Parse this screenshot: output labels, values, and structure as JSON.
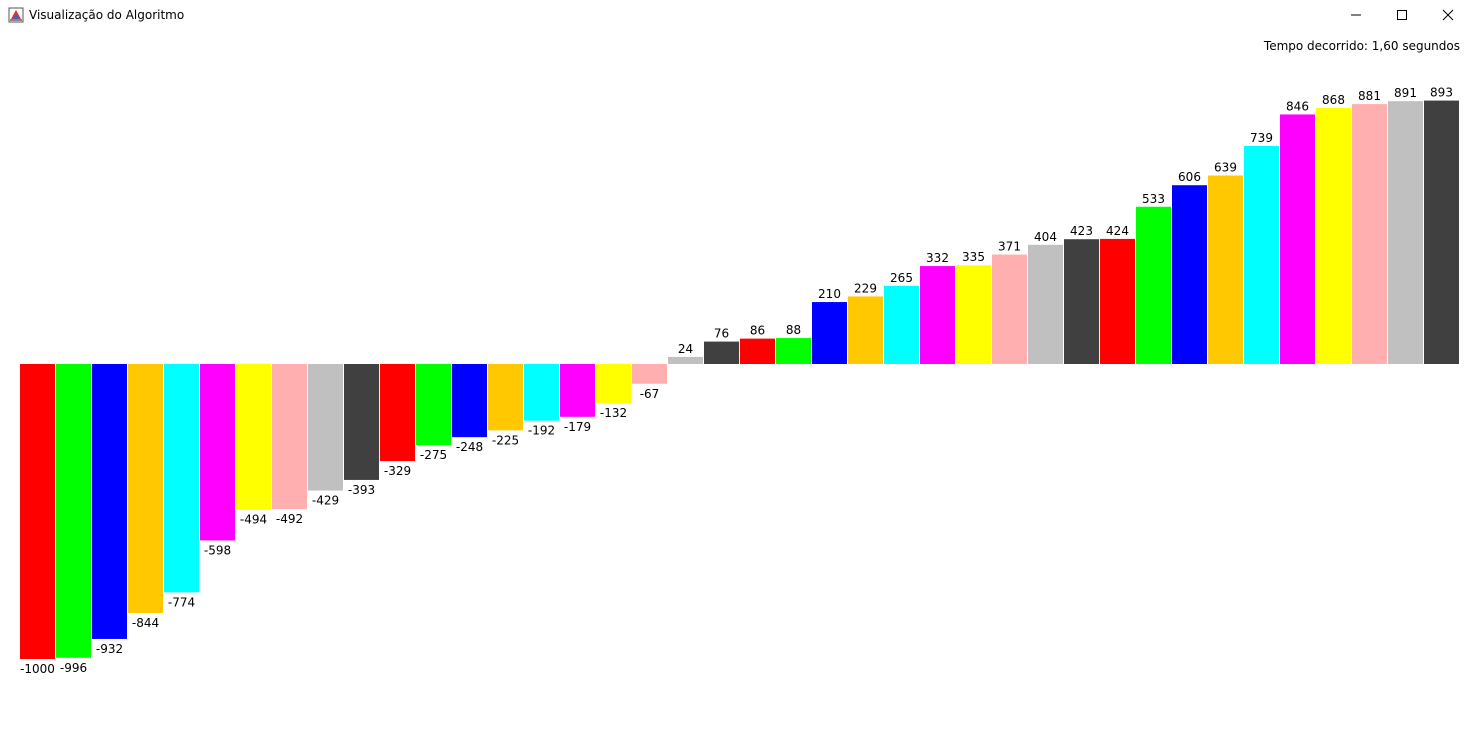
{
  "window": {
    "title": "Visualização do Algoritmo",
    "controls": {
      "minimize": "minimize-icon",
      "maximize": "maximize-icon",
      "close": "close-icon"
    }
  },
  "status": {
    "elapsed": "Tempo decorrido: 1,60 segundos"
  },
  "palette": [
    "#ff0000",
    "#00ff00",
    "#0000ff",
    "#ffc800",
    "#00ffff",
    "#ff00ff",
    "#ffff00",
    "#ffafaf",
    "#c0c0c0",
    "#404040"
  ],
  "chart_data": {
    "type": "bar",
    "title": "",
    "xlabel": "",
    "ylabel": "",
    "values": [
      -1000,
      -996,
      -932,
      -844,
      -774,
      -598,
      -494,
      -492,
      -429,
      -393,
      -329,
      -275,
      -248,
      -225,
      -192,
      -179,
      -132,
      -67,
      24,
      76,
      86,
      88,
      210,
      229,
      265,
      332,
      335,
      371,
      404,
      423,
      424,
      533,
      606,
      639,
      739,
      846,
      868,
      881,
      891,
      893
    ],
    "colors": [
      "#ff0000",
      "#00ff00",
      "#0000ff",
      "#ffc800",
      "#00ffff",
      "#ff00ff",
      "#ffff00",
      "#ffafaf",
      "#c0c0c0",
      "#404040",
      "#ff0000",
      "#00ff00",
      "#0000ff",
      "#ffc800",
      "#00ffff",
      "#ff00ff",
      "#ffff00",
      "#ffafaf",
      "#c0c0c0",
      "#404040",
      "#ff0000",
      "#00ff00",
      "#0000ff",
      "#ffc800",
      "#00ffff",
      "#ff00ff",
      "#ffff00",
      "#ffafaf",
      "#c0c0c0",
      "#404040",
      "#ff0000",
      "#00ff00",
      "#0000ff",
      "#ffc800",
      "#00ffff",
      "#ff00ff",
      "#ffff00",
      "#ffafaf",
      "#c0c0c0",
      "#404040"
    ],
    "grid": false,
    "legend": "none"
  }
}
